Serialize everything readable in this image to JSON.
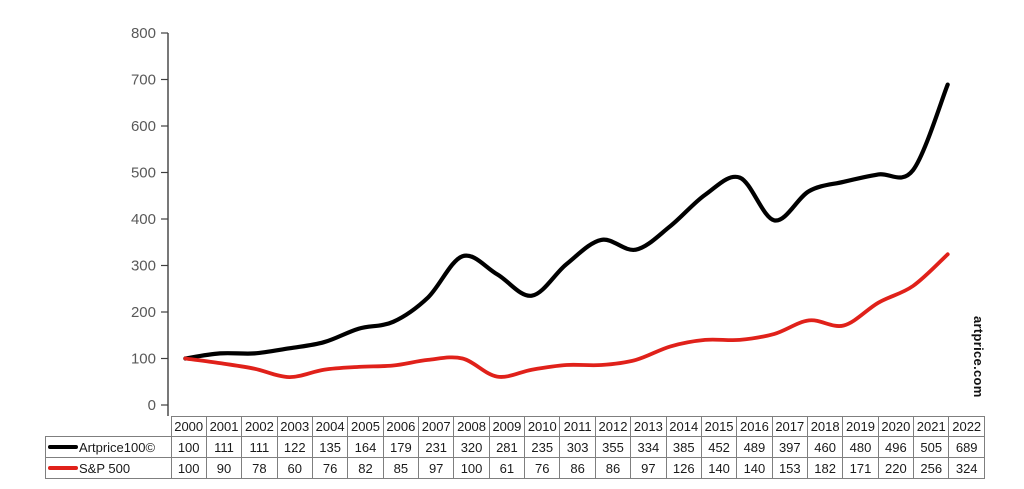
{
  "watermark": "artprice.com",
  "chart_data": {
    "type": "line",
    "title": "",
    "xlabel": "",
    "ylabel": "",
    "x": [
      2000,
      2001,
      2002,
      2003,
      2004,
      2005,
      2006,
      2007,
      2008,
      2009,
      2010,
      2011,
      2012,
      2013,
      2014,
      2015,
      2016,
      2017,
      2018,
      2019,
      2020,
      2021,
      2022
    ],
    "series": [
      {
        "name": "Artprice100©",
        "color": "#000000",
        "values": [
          100,
          111,
          111,
          122,
          135,
          164,
          179,
          231,
          320,
          281,
          235,
          303,
          355,
          334,
          385,
          452,
          489,
          397,
          460,
          480,
          496,
          505,
          689
        ]
      },
      {
        "name": "S&P 500",
        "color": "#e0211a",
        "values": [
          100,
          90,
          78,
          60,
          76,
          82,
          85,
          97,
          100,
          61,
          76,
          86,
          86,
          97,
          126,
          140,
          140,
          153,
          182,
          171,
          220,
          256,
          324
        ]
      }
    ],
    "ylim": [
      0,
      800
    ],
    "yticks": [
      0,
      100,
      200,
      300,
      400,
      500,
      600,
      700,
      800
    ],
    "grid": false,
    "smooth": true,
    "legend_position": "table-left",
    "colors": {
      "axis_line": "#3f3f3f",
      "tick_label": "#595959",
      "table_border": "#7f7f7f"
    }
  }
}
